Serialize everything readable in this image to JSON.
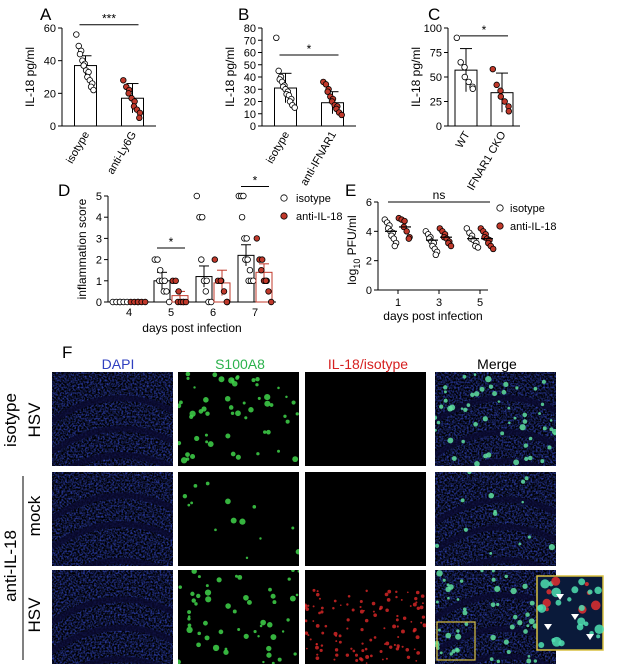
{
  "figure": {
    "panel_letters": [
      "A",
      "B",
      "C",
      "D",
      "E",
      "F"
    ]
  },
  "chart_data": [
    {
      "panel": "A",
      "type": "bar",
      "ylabel": "IL-18 pg/ml",
      "ylim": [
        0,
        60
      ],
      "yticks": [
        0,
        20,
        40,
        60
      ],
      "categories": [
        "isotype",
        "anti-Ly6G"
      ],
      "values": [
        37,
        17
      ],
      "errors": [
        6,
        9
      ],
      "fills": [
        "#ffffff",
        "#ffffff"
      ],
      "points": [
        [
          56,
          49,
          46,
          44,
          40,
          38,
          37,
          34,
          33,
          30,
          28,
          26,
          24,
          22
        ],
        [
          28,
          24,
          22,
          20,
          17,
          15,
          12,
          10,
          8,
          5
        ]
      ],
      "point_colors": [
        "#ffffff",
        "#c0392b"
      ],
      "significance": [
        {
          "between": [
            0,
            1
          ],
          "label": "***",
          "y": 62
        }
      ]
    },
    {
      "panel": "B",
      "type": "bar",
      "ylabel": "IL-18 pg/ml",
      "ylim": [
        0,
        80
      ],
      "yticks": [
        0,
        10,
        20,
        30,
        40,
        50,
        60,
        70,
        80
      ],
      "categories": [
        "isotype",
        "anti-IFNAR1"
      ],
      "values": [
        31,
        19
      ],
      "errors": [
        12,
        9
      ],
      "fills": [
        "#ffffff",
        "#ffffff"
      ],
      "points": [
        [
          72,
          45,
          40,
          38,
          36,
          33,
          32,
          30,
          28,
          26,
          25,
          22,
          20,
          17,
          15
        ],
        [
          36,
          34,
          30,
          28,
          24,
          22,
          20,
          17,
          16,
          14,
          11,
          9
        ]
      ],
      "point_colors": [
        "#ffffff",
        "#c0392b"
      ],
      "significance": [
        {
          "between": [
            0,
            1
          ],
          "label": "*",
          "y": 58
        }
      ]
    },
    {
      "panel": "C",
      "type": "bar",
      "ylabel": "IL-18 pg/ml",
      "ylim": [
        0,
        100
      ],
      "yticks": [
        0,
        25,
        50,
        75,
        100
      ],
      "categories": [
        "WT",
        "IFNAR1 CKO"
      ],
      "values": [
        57,
        34
      ],
      "errors": [
        22,
        20
      ],
      "fills": [
        "#ffffff",
        "#ffffff"
      ],
      "points": [
        [
          90,
          65,
          60,
          50,
          45,
          40,
          38
        ],
        [
          58,
          42,
          36,
          30,
          25,
          20,
          15
        ]
      ],
      "point_colors": [
        "#ffffff",
        "#c0392b"
      ],
      "significance": [
        {
          "between": [
            0,
            1
          ],
          "label": "*",
          "y": 92
        }
      ]
    },
    {
      "panel": "D",
      "type": "bar",
      "xlabel": "days post infection",
      "ylabel": "inflammation score",
      "ylim": [
        0,
        5
      ],
      "yticks": [
        0,
        1,
        2,
        3,
        4,
        5
      ],
      "categories": [
        "4",
        "5",
        "6",
        "7"
      ],
      "series": [
        {
          "name": "isotype",
          "values": [
            0,
            1.0,
            1.2,
            2.2
          ],
          "errors": [
            0,
            0.4,
            0.5,
            0.5
          ],
          "fill": "#ffffff",
          "point_color": "#ffffff",
          "points": [
            [
              0,
              0,
              0,
              0,
              0,
              0
            ],
            [
              2,
              2,
              1.5,
              1,
              1,
              1,
              0.5,
              0.5,
              0
            ],
            [
              5,
              4,
              4,
              2,
              1,
              1,
              0.5,
              0,
              0
            ],
            [
              5,
              5,
              5,
              4,
              3,
              3,
              2,
              2,
              1.5,
              1,
              1,
              1
            ]
          ]
        },
        {
          "name": "anti-IL-18",
          "values": [
            0,
            0.3,
            0.9,
            1.4
          ],
          "errors": [
            0,
            0.2,
            0.6,
            0.4
          ],
          "fill": "#ffffff",
          "point_color": "#c0392b",
          "points": [
            [
              0,
              0,
              0,
              0,
              0,
              0
            ],
            [
              1,
              1,
              0.5,
              0,
              0,
              0,
              0,
              0
            ],
            [
              2,
              1,
              1,
              1,
              0.5,
              0,
              0
            ],
            [
              3,
              2,
              2,
              1.5,
              1,
              1,
              1,
              0.5,
              0
            ]
          ]
        }
      ],
      "legend": "top-right",
      "significance": [
        {
          "between": [
            1,
            1
          ],
          "label": "*",
          "y": 2.55
        },
        {
          "between": [
            3,
            3
          ],
          "label": "*",
          "y": 5.45
        }
      ]
    },
    {
      "panel": "E",
      "type": "scatter",
      "xlabel": "days post infection",
      "ylabel_main": "PFU/ml",
      "ylabel_prefix": "log",
      "ylabel_sub": "10",
      "ylim": [
        0,
        6
      ],
      "yticks": [
        0,
        2,
        4,
        6
      ],
      "categories": [
        "1",
        "3",
        "5"
      ],
      "series": [
        {
          "name": "isotype",
          "point_color": "#ffffff",
          "mean": [
            4.0,
            3.4,
            3.5
          ],
          "points": [
            [
              4.8,
              4.6,
              4.4,
              4.2,
              4.0,
              3.9,
              3.7,
              3.5,
              3.2,
              3.0
            ],
            [
              4.0,
              3.8,
              3.6,
              3.5,
              3.3,
              3.2,
              3.0,
              2.8,
              2.6,
              2.4
            ],
            [
              4.2,
              3.9,
              3.7,
              3.5,
              3.4,
              3.2,
              3.0,
              2.9
            ]
          ]
        },
        {
          "name": "anti-IL-18",
          "point_color": "#c0392b",
          "mean": [
            4.3,
            3.6,
            3.5
          ],
          "points": [
            [
              4.9,
              4.8,
              4.7,
              4.3,
              4.0,
              3.6,
              3.5
            ],
            [
              4.2,
              4.0,
              3.8,
              3.6,
              3.5,
              3.3,
              3.2,
              3.0
            ],
            [
              4.2,
              4.0,
              3.8,
              3.6,
              3.5,
              3.4,
              3.2,
              3.0,
              2.8
            ]
          ]
        }
      ],
      "legend": "right",
      "significance": [
        {
          "between": [
            0,
            2
          ],
          "label": "ns",
          "y": 6.0
        }
      ]
    }
  ],
  "micrographs": {
    "column_labels": [
      {
        "text": "DAPI",
        "color": "#2f3fbf"
      },
      {
        "text": "S100A8",
        "color": "#2bb24c"
      },
      {
        "text": "IL-18/isotype",
        "color": "#d62020"
      },
      {
        "text": "Merge",
        "color": "#000000"
      }
    ],
    "group_labels": [
      "isotype",
      "anti-IL-18"
    ],
    "row_labels": [
      "HSV",
      "mock",
      "HSV"
    ]
  }
}
